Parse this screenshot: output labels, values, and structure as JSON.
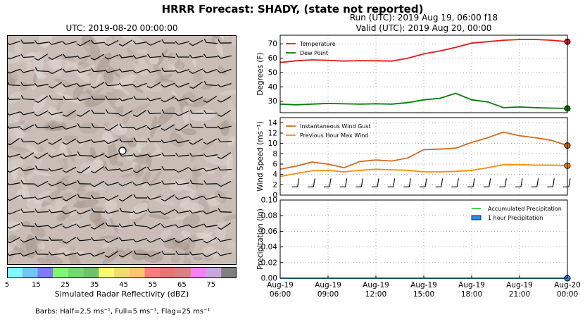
{
  "title": "HRRR Forecast: SHADY, (state not reported)",
  "map": {
    "title": "UTC: 2019-08-20 00:00:00",
    "colorbar_label": "Simulated Radar Reflectivity (dBZ)",
    "colorbar_ticks": [
      "5",
      "15",
      "25",
      "35",
      "45",
      "55",
      "65",
      "75"
    ],
    "colorbar_colors": [
      "#7df9ff",
      "#72c5f2",
      "#7c7cf3",
      "#7dfa6f",
      "#72d96e",
      "#6ec26e",
      "#fafa6f",
      "#f2dc6e",
      "#fac56f",
      "#fa7c7c",
      "#e97474",
      "#dc8080",
      "#fa7dfa",
      "#c8a7df",
      "#7f7f7f"
    ],
    "barb_note": "Barbs: Half=2.5 ms⁻¹, Full=5 ms⁻¹, Flag=25 ms⁻¹"
  },
  "run_title_line1": "Run (UTC): 2019 Aug 19, 06:00 f18",
  "run_title_line2": "Valid (UTC): 2019 Aug 20, 00:00",
  "chart_data": [
    {
      "type": "line",
      "ylabel": "Degrees (F)",
      "ylim": [
        22,
        76
      ],
      "yticks": [
        30,
        40,
        50,
        60,
        70
      ],
      "grid": true,
      "legend": "top-left",
      "x_hours": [
        0,
        1,
        2,
        3,
        4,
        5,
        6,
        7,
        8,
        9,
        10,
        11,
        12,
        13,
        14,
        15,
        16,
        17,
        18
      ],
      "series": [
        {
          "name": "Temperature",
          "color": "#e41a1c",
          "values": [
            57,
            58.2,
            58.8,
            58.5,
            58,
            58.3,
            58.2,
            58,
            60,
            63,
            65,
            67.5,
            70.5,
            71.5,
            72.5,
            73,
            73,
            72.5,
            71.5
          ]
        },
        {
          "name": "Dew Point",
          "color": "#008000",
          "values": [
            28,
            27.5,
            28,
            28.5,
            28.2,
            28,
            28.2,
            28,
            29,
            31,
            32,
            35.5,
            31,
            29.5,
            25.5,
            26,
            25.5,
            25.2,
            25
          ]
        }
      ]
    },
    {
      "type": "line",
      "ylabel": "Wind Speed (ms⁻¹)",
      "ylim": [
        0,
        15
      ],
      "yticks": [
        0,
        2,
        4,
        6,
        8,
        10,
        12,
        14
      ],
      "grid": true,
      "legend": "top-left",
      "x_hours": [
        0,
        1,
        2,
        3,
        4,
        5,
        6,
        7,
        8,
        9,
        10,
        11,
        12,
        13,
        14,
        15,
        16,
        17,
        18
      ],
      "series": [
        {
          "name": "Instantaneous Wind Gust",
          "color": "#d2691e",
          "values": [
            5,
            5.6,
            6.4,
            6,
            5.3,
            6.5,
            6.8,
            6.6,
            7.2,
            8.8,
            8.9,
            9.1,
            10.2,
            11.1,
            12.2,
            11.5,
            11.1,
            10.6,
            9.6
          ]
        },
        {
          "name": "Previous Hour Max Wind",
          "color": "#ff8c00",
          "values": [
            3.6,
            4.2,
            4.7,
            4.8,
            4.5,
            4.8,
            5,
            4.9,
            4.8,
            4.5,
            4.5,
            4.6,
            4.8,
            5.3,
            5.9,
            5.9,
            5.8,
            5.8,
            5.7
          ]
        }
      ]
    },
    {
      "type": "line",
      "ylabel": "Precipitation (in)",
      "ylim": [
        0,
        0.1
      ],
      "yticks": [
        "0.00",
        "0.02",
        "0.04",
        "0.06",
        "0.08",
        "0.10"
      ],
      "grid": true,
      "legend": "top-right",
      "x_hours": [
        0,
        1,
        2,
        3,
        4,
        5,
        6,
        7,
        8,
        9,
        10,
        11,
        12,
        13,
        14,
        15,
        16,
        17,
        18
      ],
      "series": [
        {
          "name": "Accumulated Precipitation",
          "color": "#32cd32",
          "values": [
            0,
            0,
            0,
            0,
            0,
            0,
            0,
            0,
            0,
            0,
            0,
            0,
            0,
            0,
            0,
            0,
            0,
            0,
            0
          ]
        },
        {
          "name": "1 hour Precipitation",
          "color": "#1e90ff",
          "values": [
            0,
            0,
            0,
            0,
            0,
            0,
            0,
            0,
            0,
            0,
            0,
            0,
            0,
            0,
            0,
            0,
            0,
            0,
            0
          ]
        }
      ],
      "x_tick_hours": [
        0,
        3,
        6,
        9,
        12,
        15,
        18
      ],
      "x_tick_labels": [
        [
          "Aug-19",
          "06:00"
        ],
        [
          "Aug-19",
          "09:00"
        ],
        [
          "Aug-19",
          "12:00"
        ],
        [
          "Aug-19",
          "15:00"
        ],
        [
          "Aug-19",
          "18:00"
        ],
        [
          "Aug-19",
          "21:00"
        ],
        [
          "Aug-20",
          "00:00"
        ]
      ]
    }
  ]
}
